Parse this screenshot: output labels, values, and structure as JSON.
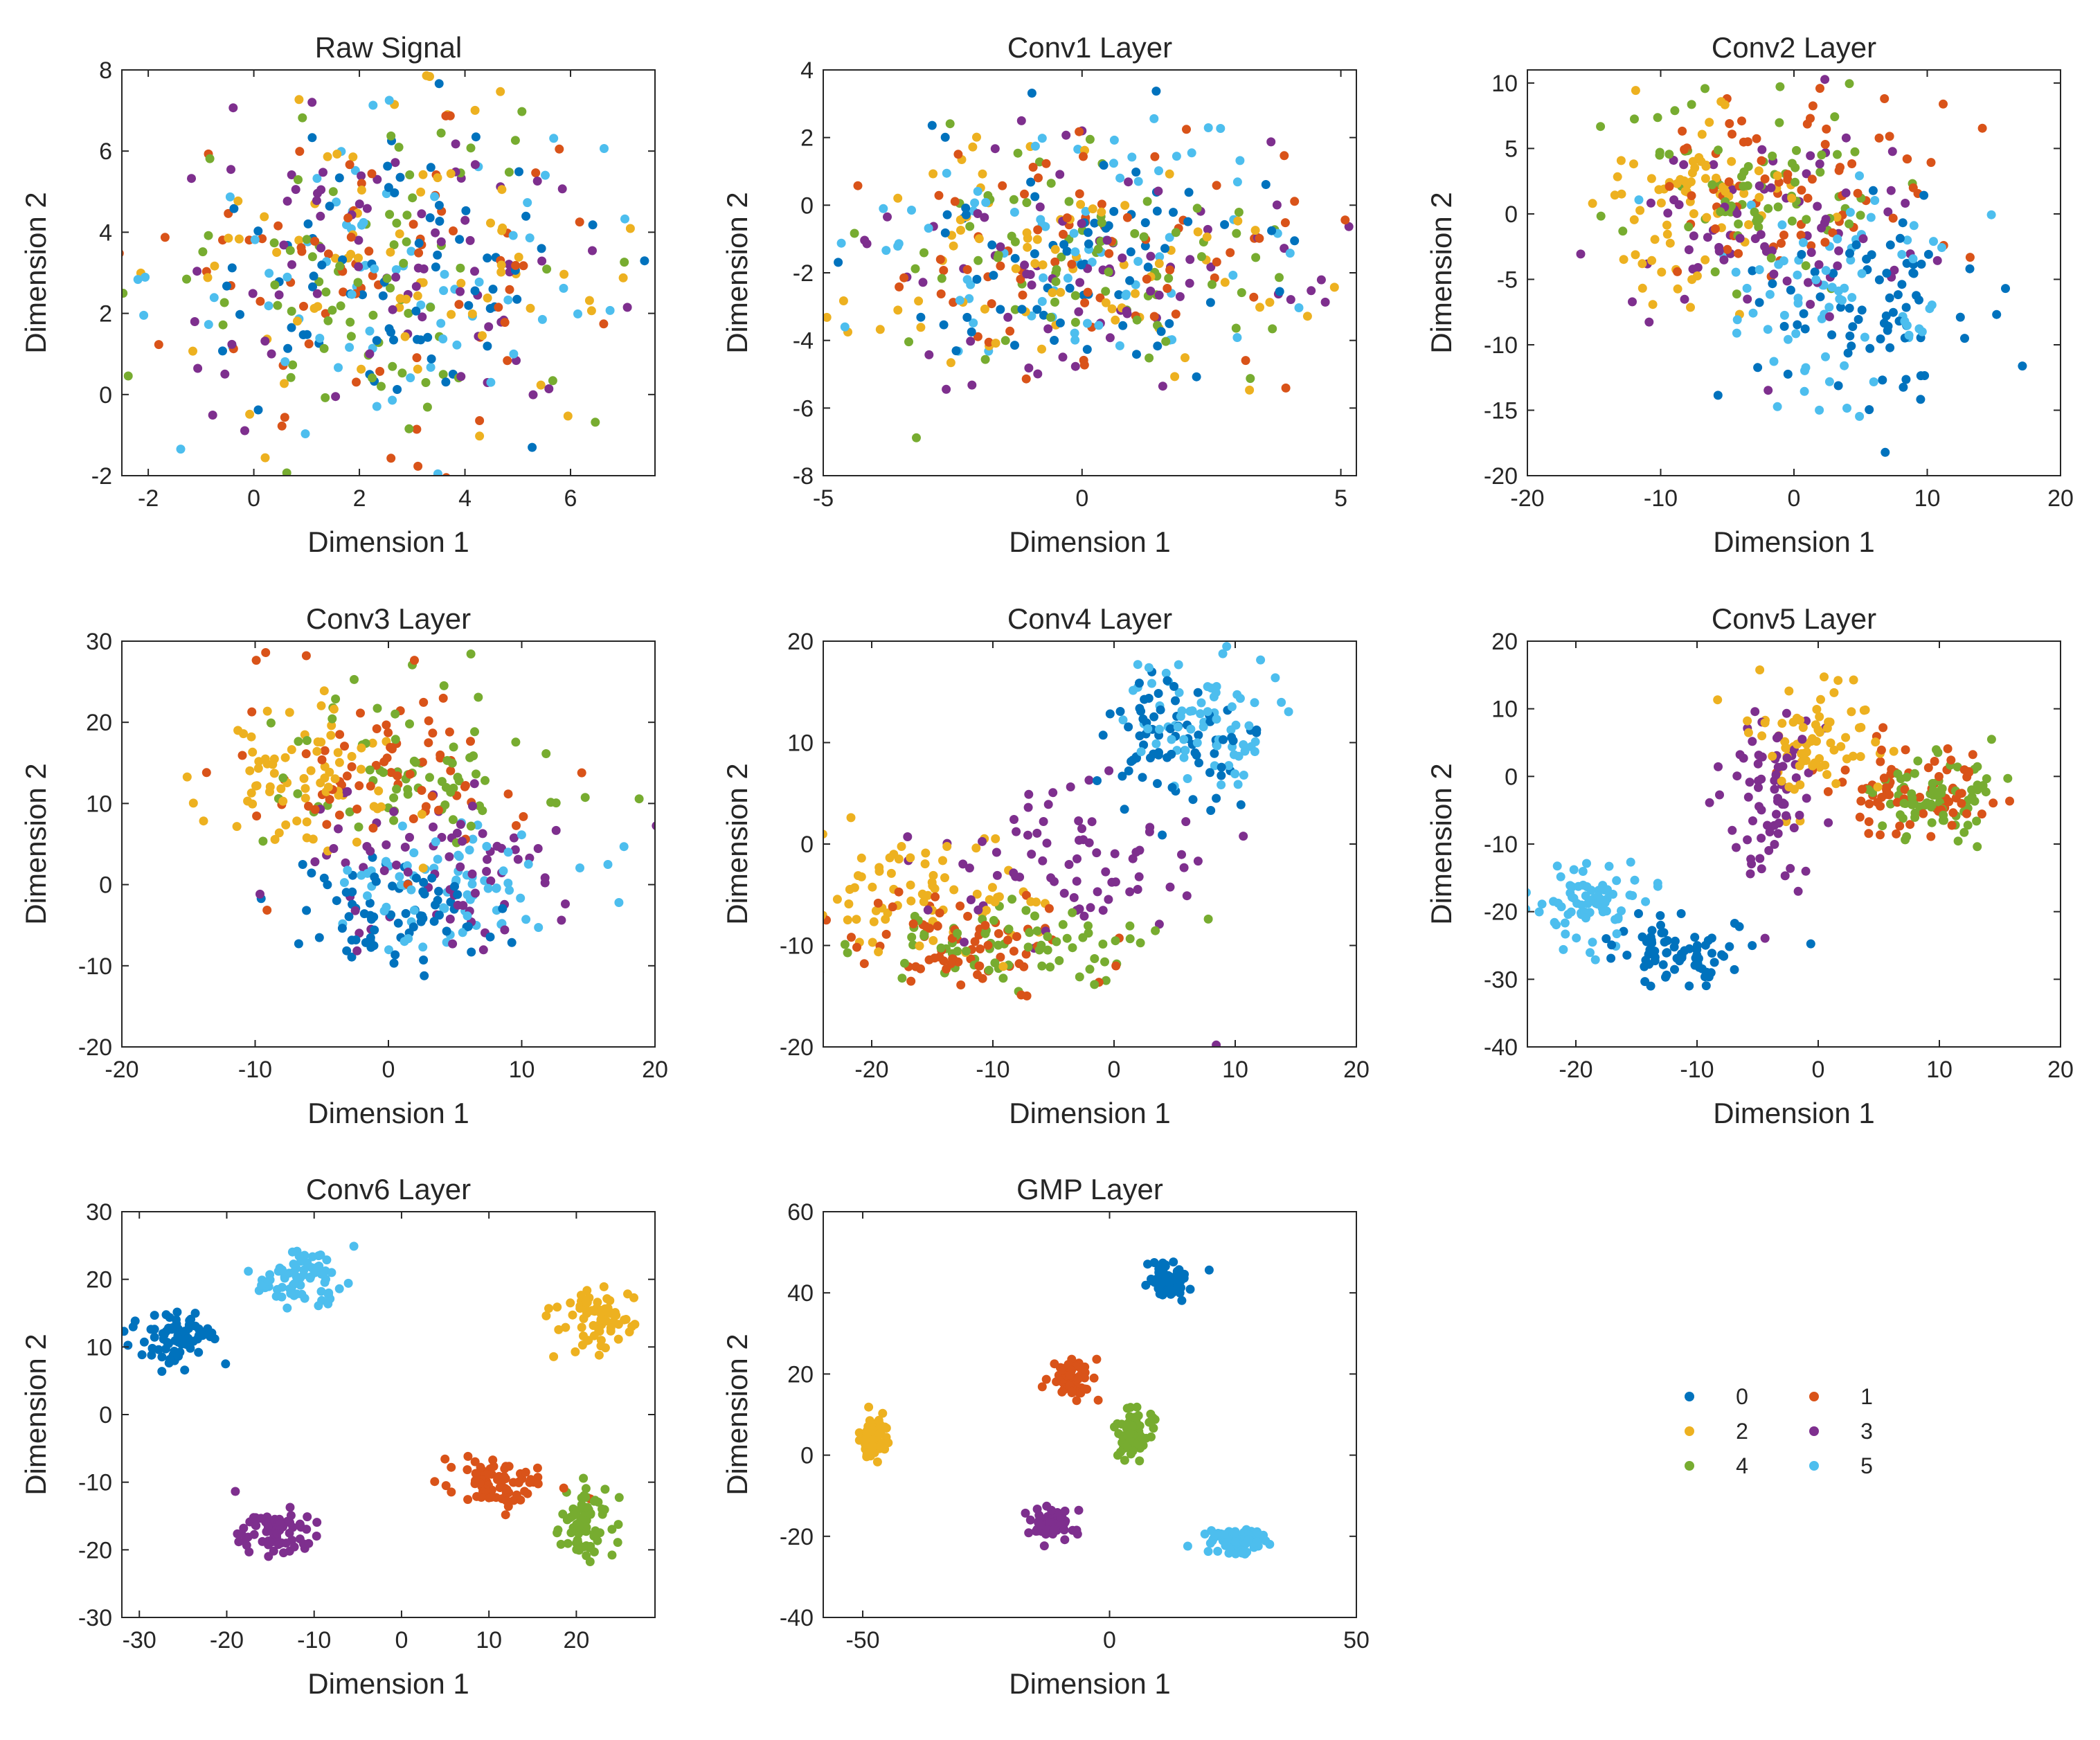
{
  "figure": {
    "description_colors": {
      "0": "#0072BD",
      "1": "#D95319",
      "2": "#EDB120",
      "3": "#7E2F8E",
      "4": "#77AC30",
      "5": "#4DBEEE"
    }
  },
  "chart_data": [
    {
      "type": "scatter",
      "title": "Raw Signal",
      "xlabel": "Dimension 1",
      "ylabel": "Dimension 2",
      "xlim": [
        -2.5,
        7.6
      ],
      "ylim": [
        -2,
        8
      ],
      "xticks": [
        -2,
        0,
        2,
        4,
        6
      ],
      "yticks": [
        -2,
        0,
        2,
        4,
        6,
        8
      ],
      "clusters": [
        {
          "label": "0",
          "cx": 2.5,
          "cy": 3,
          "sx": 2.1,
          "sy": 1.9,
          "n": 75
        },
        {
          "label": "1",
          "cx": 2.5,
          "cy": 3,
          "sx": 2.1,
          "sy": 1.9,
          "n": 75
        },
        {
          "label": "2",
          "cx": 2.5,
          "cy": 3,
          "sx": 2.1,
          "sy": 1.9,
          "n": 75
        },
        {
          "label": "3",
          "cx": 2.5,
          "cy": 3,
          "sx": 2.1,
          "sy": 1.9,
          "n": 75
        },
        {
          "label": "4",
          "cx": 2.5,
          "cy": 3,
          "sx": 2.1,
          "sy": 1.9,
          "n": 75
        },
        {
          "label": "5",
          "cx": 2.5,
          "cy": 3,
          "sx": 2.1,
          "sy": 1.9,
          "n": 75
        }
      ]
    },
    {
      "type": "scatter",
      "title": "Conv1 Layer",
      "xlabel": "Dimension 1",
      "ylabel": "Dimension 2",
      "xlim": [
        -5,
        5.3
      ],
      "ylim": [
        -8,
        4
      ],
      "xticks": [
        -5,
        0,
        5
      ],
      "yticks": [
        -8,
        -6,
        -4,
        -2,
        0,
        2,
        4
      ],
      "clusters": [
        {
          "label": "0",
          "cx": 0,
          "cy": -1.7,
          "sx": 2.2,
          "sy": 1.9,
          "n": 75
        },
        {
          "label": "1",
          "cx": 0.3,
          "cy": -1.7,
          "sx": 2.0,
          "sy": 1.9,
          "n": 75
        },
        {
          "label": "2",
          "cx": 0,
          "cy": -1.5,
          "sx": 2.0,
          "sy": 1.9,
          "n": 75
        },
        {
          "label": "3",
          "cx": 0.3,
          "cy": -1.8,
          "sx": 2.0,
          "sy": 1.9,
          "n": 75
        },
        {
          "label": "4",
          "cx": 0,
          "cy": -1.8,
          "sx": 2.0,
          "sy": 1.9,
          "n": 75
        },
        {
          "label": "5",
          "cx": -0.3,
          "cy": -1.5,
          "sx": 2.2,
          "sy": 1.9,
          "n": 75
        }
      ]
    },
    {
      "type": "scatter",
      "title": "Conv2 Layer",
      "xlabel": "Dimension 1",
      "ylabel": "Dimension 2",
      "xlim": [
        -20,
        20
      ],
      "ylim": [
        -20,
        11
      ],
      "xticks": [
        -20,
        -10,
        0,
        10,
        20
      ],
      "yticks": [
        -20,
        -15,
        -10,
        -5,
        0,
        5,
        10
      ],
      "clusters": [
        {
          "label": "0",
          "cx": 5,
          "cy": -8,
          "sx": 4.2,
          "sy": 3.6,
          "n": 75
        },
        {
          "label": "1",
          "cx": 0,
          "cy": 2,
          "sx": 5,
          "sy": 3.8,
          "n": 75
        },
        {
          "label": "2",
          "cx": -8,
          "cy": 1,
          "sx": 3.8,
          "sy": 4,
          "n": 75
        },
        {
          "label": "3",
          "cx": -2,
          "cy": -2,
          "sx": 6,
          "sy": 5,
          "n": 75
        },
        {
          "label": "4",
          "cx": -3,
          "cy": 2,
          "sx": 5.5,
          "sy": 4,
          "n": 75
        },
        {
          "label": "5",
          "cx": 3,
          "cy": -6,
          "sx": 4.5,
          "sy": 4,
          "n": 75
        }
      ]
    },
    {
      "type": "scatter",
      "title": "Conv3 Layer",
      "xlabel": "Dimension 1",
      "ylabel": "Dimension 2",
      "xlim": [
        -20,
        20
      ],
      "ylim": [
        -20,
        30
      ],
      "xticks": [
        -20,
        -10,
        0,
        10,
        20
      ],
      "yticks": [
        -20,
        -10,
        0,
        10,
        20,
        30
      ],
      "clusters": [
        {
          "label": "0",
          "cx": 0,
          "cy": -4,
          "sx": 4.2,
          "sy": 3.5,
          "n": 75
        },
        {
          "label": "1",
          "cx": 0,
          "cy": 14,
          "sx": 5,
          "sy": 5.5,
          "n": 75
        },
        {
          "label": "2",
          "cx": -6,
          "cy": 14,
          "sx": 3.5,
          "sy": 5,
          "n": 75
        },
        {
          "label": "3",
          "cx": 4,
          "cy": 3,
          "sx": 5.5,
          "sy": 5,
          "n": 75
        },
        {
          "label": "4",
          "cx": 2,
          "cy": 14,
          "sx": 5.5,
          "sy": 5,
          "n": 75
        },
        {
          "label": "5",
          "cx": 5,
          "cy": -1,
          "sx": 5,
          "sy": 4,
          "n": 75
        }
      ]
    },
    {
      "type": "scatter",
      "title": "Conv4 Layer",
      "xlabel": "Dimension 1",
      "ylabel": "Dimension 2",
      "xlim": [
        -24,
        20
      ],
      "ylim": [
        -20,
        20
      ],
      "xticks": [
        -20,
        -10,
        0,
        10,
        20
      ],
      "yticks": [
        -20,
        -10,
        0,
        10,
        20
      ],
      "clusters": [
        {
          "label": "0",
          "cx": 5,
          "cy": 10,
          "sx": 3,
          "sy": 3.5,
          "n": 75
        },
        {
          "label": "1",
          "cx": -12,
          "cy": -10,
          "sx": 5.5,
          "sy": 2.5,
          "n": 75
        },
        {
          "label": "2",
          "cx": -15,
          "cy": -5,
          "sx": 5,
          "sy": 3,
          "n": 75
        },
        {
          "label": "3",
          "cx": -5,
          "cy": -2,
          "sx": 7,
          "sy": 4,
          "n": 75
        },
        {
          "label": "4",
          "cx": -8,
          "cy": -10,
          "sx": 6,
          "sy": 2.5,
          "n": 75
        },
        {
          "label": "5",
          "cx": 7,
          "cy": 12,
          "sx": 3.5,
          "sy": 3.5,
          "n": 75
        }
      ]
    },
    {
      "type": "scatter",
      "title": "Conv5 Layer",
      "xlabel": "Dimension 1",
      "ylabel": "Dimension 2",
      "xlim": [
        -24,
        20
      ],
      "ylim": [
        -40,
        20
      ],
      "xticks": [
        -20,
        -10,
        0,
        10,
        20
      ],
      "yticks": [
        -40,
        -30,
        -20,
        -10,
        0,
        10,
        20
      ],
      "clusters": [
        {
          "label": "0",
          "cx": -12,
          "cy": -26,
          "sx": 3,
          "sy": 2.2,
          "n": 75
        },
        {
          "label": "1",
          "cx": 8,
          "cy": -2,
          "sx": 3.5,
          "sy": 4,
          "n": 75
        },
        {
          "label": "2",
          "cx": -1,
          "cy": 6,
          "sx": 3,
          "sy": 4.5,
          "n": 75
        },
        {
          "label": "3",
          "cx": -4,
          "cy": -3,
          "sx": 2,
          "sy": 6,
          "n": 75
        },
        {
          "label": "4",
          "cx": 10,
          "cy": -3,
          "sx": 2.5,
          "sy": 3,
          "n": 75
        },
        {
          "label": "5",
          "cx": -19,
          "cy": -19,
          "sx": 2.5,
          "sy": 3,
          "n": 75
        }
      ]
    },
    {
      "type": "scatter",
      "title": "Conv6 Layer",
      "xlabel": "Dimension 1",
      "ylabel": "Dimension 2",
      "xlim": [
        -32,
        29
      ],
      "ylim": [
        -30,
        30
      ],
      "xticks": [
        -30,
        -20,
        -10,
        0,
        10,
        20
      ],
      "yticks": [
        -30,
        -20,
        -10,
        0,
        10,
        20,
        30
      ],
      "clusters": [
        {
          "label": "0",
          "cx": -26,
          "cy": 11.5,
          "sx": 2.5,
          "sy": 2,
          "n": 75
        },
        {
          "label": "1",
          "cx": 11,
          "cy": -10,
          "sx": 2.8,
          "sy": 1.8,
          "n": 75
        },
        {
          "label": "2",
          "cx": 22,
          "cy": 14,
          "sx": 2.3,
          "sy": 2.2,
          "n": 75
        },
        {
          "label": "3",
          "cx": -14.5,
          "cy": -17.5,
          "sx": 2.3,
          "sy": 1.8,
          "n": 75
        },
        {
          "label": "4",
          "cx": 21,
          "cy": -16,
          "sx": 2,
          "sy": 2.6,
          "n": 75
        },
        {
          "label": "5",
          "cx": -11.5,
          "cy": 20,
          "sx": 2.3,
          "sy": 1.8,
          "n": 75
        }
      ]
    },
    {
      "type": "scatter",
      "title": "GMP Layer",
      "xlabel": "Dimension 1",
      "ylabel": "Dimension 2",
      "xlim": [
        -58,
        50
      ],
      "ylim": [
        -40,
        60
      ],
      "xticks": [
        -50,
        0,
        50
      ],
      "yticks": [
        -40,
        -20,
        0,
        20,
        40,
        60
      ],
      "clusters": [
        {
          "label": "0",
          "cx": 12,
          "cy": 43,
          "sx": 2.2,
          "sy": 2.2,
          "n": 75
        },
        {
          "label": "1",
          "cx": -8,
          "cy": 19,
          "sx": 2.2,
          "sy": 2.2,
          "n": 75
        },
        {
          "label": "2",
          "cx": -48,
          "cy": 4,
          "sx": 1.5,
          "sy": 2.5,
          "n": 75
        },
        {
          "label": "3",
          "cx": -12,
          "cy": -17,
          "sx": 2.2,
          "sy": 1.8,
          "n": 75
        },
        {
          "label": "4",
          "cx": 5,
          "cy": 4,
          "sx": 1.6,
          "sy": 3.5,
          "n": 75
        },
        {
          "label": "5",
          "cx": 26,
          "cy": -21,
          "sx": 3,
          "sy": 1.5,
          "n": 75
        }
      ]
    }
  ],
  "legend": {
    "entries": [
      {
        "label": "0",
        "color": "#0072BD"
      },
      {
        "label": "1",
        "color": "#D95319"
      },
      {
        "label": "2",
        "color": "#EDB120"
      },
      {
        "label": "3",
        "color": "#7E2F8E"
      },
      {
        "label": "4",
        "color": "#77AC30"
      },
      {
        "label": "5",
        "color": "#4DBEEE"
      }
    ]
  }
}
